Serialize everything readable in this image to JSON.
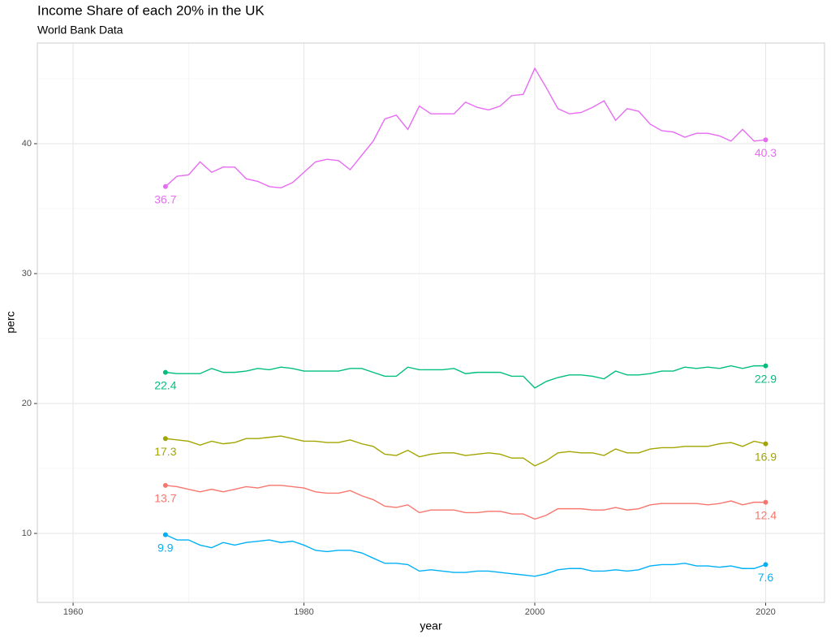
{
  "chart_data": {
    "type": "line",
    "title": "Income Share of each 20% in the UK",
    "subtitle": "World Bank Data",
    "x_label": "year",
    "y_label": "perc",
    "x": [
      1968,
      1969,
      1970,
      1971,
      1972,
      1973,
      1974,
      1975,
      1976,
      1977,
      1978,
      1979,
      1980,
      1981,
      1982,
      1983,
      1984,
      1985,
      1986,
      1987,
      1988,
      1989,
      1990,
      1991,
      1992,
      1993,
      1994,
      1995,
      1996,
      1997,
      1998,
      1999,
      2000,
      2001,
      2002,
      2003,
      2004,
      2005,
      2006,
      2007,
      2008,
      2009,
      2010,
      2011,
      2012,
      2013,
      2014,
      2015,
      2016,
      2017,
      2018,
      2019,
      2020
    ],
    "series": [
      {
        "color": "#E76BF3",
        "values": [
          36.7,
          37.5,
          37.6,
          38.6,
          37.8,
          38.2,
          38.2,
          37.3,
          37.1,
          36.7,
          36.6,
          37.0,
          37.8,
          38.6,
          38.8,
          38.7,
          38.0,
          39.1,
          40.2,
          41.9,
          42.2,
          41.1,
          42.9,
          42.3,
          42.3,
          42.3,
          43.2,
          42.8,
          42.6,
          42.9,
          43.7,
          43.8,
          45.8,
          44.3,
          42.7,
          42.3,
          42.4,
          42.8,
          43.3,
          41.8,
          42.7,
          42.5,
          41.5,
          41.0,
          40.9,
          40.5,
          40.8,
          40.8,
          40.6,
          40.2,
          41.1,
          40.2,
          40.3
        ]
      },
      {
        "color": "#00BF7D",
        "values": [
          22.4,
          22.3,
          22.3,
          22.3,
          22.7,
          22.4,
          22.4,
          22.5,
          22.7,
          22.6,
          22.8,
          22.7,
          22.5,
          22.5,
          22.5,
          22.5,
          22.7,
          22.7,
          22.4,
          22.1,
          22.1,
          22.8,
          22.6,
          22.6,
          22.6,
          22.7,
          22.3,
          22.4,
          22.4,
          22.4,
          22.1,
          22.1,
          21.2,
          21.7,
          22.0,
          22.2,
          22.2,
          22.1,
          21.9,
          22.5,
          22.2,
          22.2,
          22.3,
          22.5,
          22.5,
          22.8,
          22.7,
          22.8,
          22.7,
          22.9,
          22.7,
          22.9,
          22.9
        ]
      },
      {
        "color": "#A3A500",
        "values": [
          17.3,
          17.2,
          17.1,
          16.8,
          17.1,
          16.9,
          17.0,
          17.3,
          17.3,
          17.4,
          17.5,
          17.3,
          17.1,
          17.1,
          17.0,
          17.0,
          17.2,
          16.9,
          16.7,
          16.1,
          16.0,
          16.4,
          15.9,
          16.1,
          16.2,
          16.2,
          16.0,
          16.1,
          16.2,
          16.1,
          15.8,
          15.8,
          15.2,
          15.6,
          16.2,
          16.3,
          16.2,
          16.2,
          16.0,
          16.5,
          16.2,
          16.2,
          16.5,
          16.6,
          16.6,
          16.7,
          16.7,
          16.7,
          16.9,
          17.0,
          16.7,
          17.1,
          16.9
        ]
      },
      {
        "color": "#F8766D",
        "values": [
          13.7,
          13.6,
          13.4,
          13.2,
          13.4,
          13.2,
          13.4,
          13.6,
          13.5,
          13.7,
          13.7,
          13.6,
          13.5,
          13.2,
          13.1,
          13.1,
          13.3,
          12.9,
          12.6,
          12.1,
          12.0,
          12.2,
          11.6,
          11.8,
          11.8,
          11.8,
          11.6,
          11.6,
          11.7,
          11.7,
          11.5,
          11.5,
          11.1,
          11.4,
          11.9,
          11.9,
          11.9,
          11.8,
          11.8,
          12.0,
          11.8,
          11.9,
          12.2,
          12.3,
          12.3,
          12.3,
          12.3,
          12.2,
          12.3,
          12.5,
          12.2,
          12.4,
          12.4
        ]
      },
      {
        "color": "#00B0F6",
        "values": [
          9.9,
          9.5,
          9.5,
          9.1,
          8.9,
          9.3,
          9.1,
          9.3,
          9.4,
          9.5,
          9.3,
          9.4,
          9.1,
          8.7,
          8.6,
          8.7,
          8.7,
          8.5,
          8.1,
          7.7,
          7.7,
          7.6,
          7.1,
          7.2,
          7.1,
          7.0,
          7.0,
          7.1,
          7.1,
          7.0,
          6.9,
          6.8,
          6.7,
          6.9,
          7.2,
          7.3,
          7.3,
          7.1,
          7.1,
          7.2,
          7.1,
          7.2,
          7.5,
          7.6,
          7.6,
          7.7,
          7.5,
          7.5,
          7.4,
          7.5,
          7.3,
          7.3,
          7.6
        ]
      }
    ],
    "xlim": [
      1956.9,
      2025.1
    ],
    "xticks": [
      1960,
      1980,
      2000,
      2020
    ],
    "ylim": [
      4.69,
      47.75
    ],
    "yticks": [
      10,
      20,
      30,
      40
    ],
    "grid": true,
    "minor_grid": true,
    "end_labels": true
  }
}
